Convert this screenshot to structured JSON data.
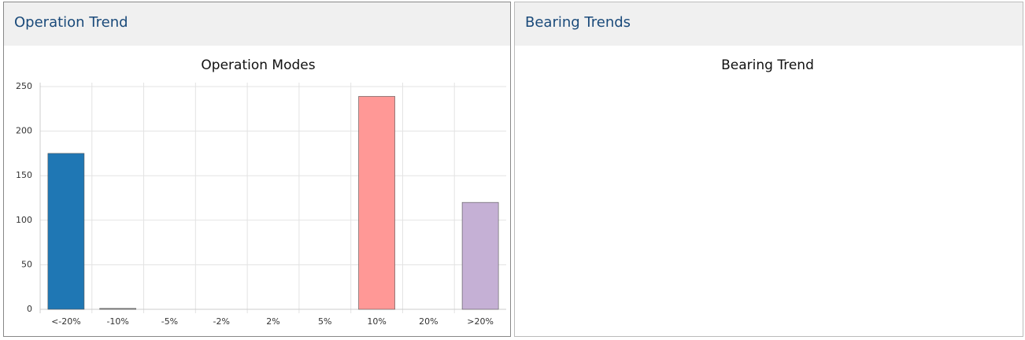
{
  "panel_headers": [
    "Operation Trend",
    "Bearing Trends"
  ],
  "chart_data": [
    {
      "type": "bar",
      "title": "Operation Modes",
      "categories": [
        "<-20%",
        "-10%",
        "-5%",
        "-2%",
        "2%",
        "5%",
        "10%",
        "20%",
        ">20%"
      ],
      "values": [
        175,
        1,
        0,
        0,
        0,
        0,
        239,
        0,
        120
      ],
      "colors": [
        "#1f77b4",
        "#8c8c8c",
        "#aec7e8",
        "#ffbb78",
        "#98df8a",
        "#2ca02c",
        "#ff9896",
        "#9467bd",
        "#c5b0d5"
      ],
      "ylim": [
        0,
        250
      ],
      "yticks": [
        0,
        50,
        100,
        150,
        200,
        250
      ],
      "grid": true
    },
    {
      "type": "line",
      "title": "Bearing Trend"
    }
  ]
}
